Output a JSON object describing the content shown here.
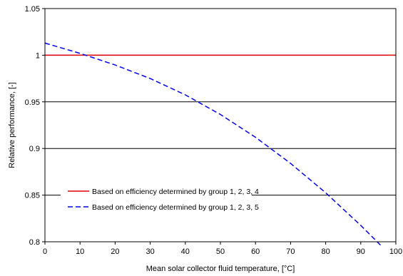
{
  "chart_data": {
    "type": "line",
    "title": "",
    "xlabel": "Mean solar collector fluid temperature, [°C]",
    "ylabel": "Relative performance, [-]",
    "xlim": [
      0,
      100
    ],
    "ylim": [
      0.8,
      1.05
    ],
    "x_ticks": [
      "0",
      "10",
      "20",
      "30",
      "40",
      "50",
      "60",
      "70",
      "80",
      "90",
      "100"
    ],
    "y_ticks": [
      "0.8",
      "0.85",
      "0.9",
      "0.95",
      "1",
      "1.05"
    ],
    "grid": "horizontal",
    "legend_position": "lower-left",
    "series": [
      {
        "name": "Based on efficiency determined by group 1, 2, 3, 4",
        "color": "#e00000",
        "style": "solid",
        "x": [
          0,
          100
        ],
        "y": [
          1.0,
          1.0
        ]
      },
      {
        "name": "Based on efficiency determined by group 1, 2, 3, 5",
        "color": "#0000ff",
        "style": "dashed",
        "x": [
          0,
          10,
          20,
          30,
          40,
          50,
          60,
          70,
          80,
          90,
          96
        ],
        "y": [
          1.013,
          1.002,
          0.9895,
          0.975,
          0.9575,
          0.9365,
          0.912,
          0.884,
          0.8525,
          0.8175,
          0.795
        ]
      }
    ]
  }
}
